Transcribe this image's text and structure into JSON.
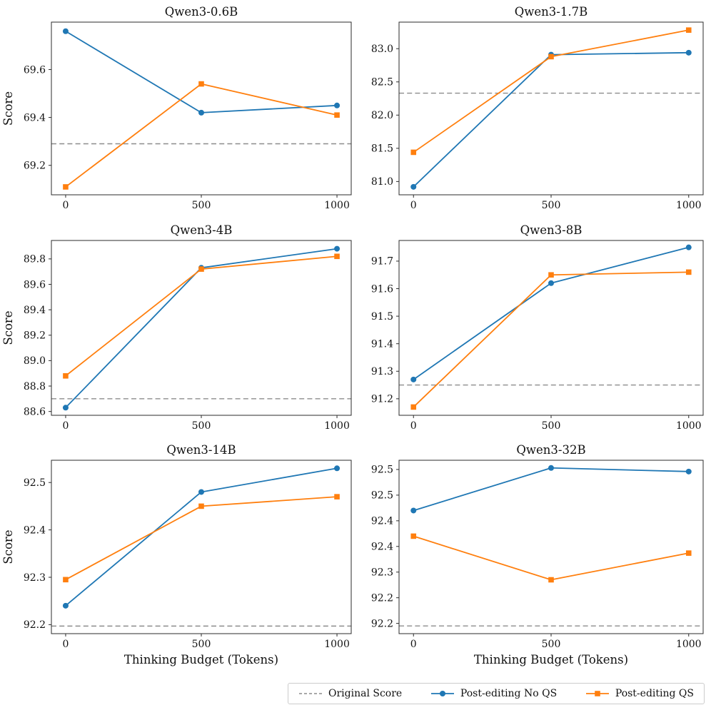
{
  "figure": {
    "xlabel": "Thinking Budget (Tokens)",
    "ylabel": "Score",
    "x_tick_labels": [
      "0",
      "500",
      "1000"
    ],
    "colors": {
      "no_qs": "#1f77b4",
      "qs": "#ff7f0e",
      "original_score": "#8c8c8c",
      "spine": "#2b2b2b"
    },
    "legend": [
      {
        "label": "Original Score",
        "style": "dashed",
        "color": "#8c8c8c"
      },
      {
        "label": "Post-editing No QS",
        "style": "line-circle",
        "color": "#1f77b4"
      },
      {
        "label": "Post-editing QS",
        "style": "line-square",
        "color": "#ff7f0e"
      }
    ]
  },
  "chart_data": [
    {
      "type": "line",
      "title": "Qwen3-0.6B",
      "x": [
        0,
        500,
        1000
      ],
      "xtick_labels": [
        "0",
        "500",
        "1000"
      ],
      "xlim": [
        -52.5,
        1052.5
      ],
      "ylim": [
        69.077,
        69.798
      ],
      "yticks": [
        {
          "v": 69.2,
          "label": "69.2"
        },
        {
          "v": 69.4,
          "label": "69.4"
        },
        {
          "v": 69.6,
          "label": "69.6"
        }
      ],
      "original_score": 69.29,
      "series": [
        {
          "name": "Post-editing No QS",
          "marker": "circle",
          "color": "#1f77b4",
          "values": [
            69.76,
            69.42,
            69.45
          ]
        },
        {
          "name": "Post-editing QS",
          "marker": "square",
          "color": "#ff7f0e",
          "values": [
            69.11,
            69.54,
            69.41
          ]
        }
      ],
      "ylabel": "Score",
      "xlabel": ""
    },
    {
      "type": "line",
      "title": "Qwen3-1.7B",
      "x": [
        0,
        500,
        1000
      ],
      "xtick_labels": [
        "0",
        "500",
        "1000"
      ],
      "xlim": [
        -52.5,
        1052.5
      ],
      "ylim": [
        80.8,
        83.4
      ],
      "yticks": [
        {
          "v": 81.0,
          "label": "81.0"
        },
        {
          "v": 81.5,
          "label": "81.5"
        },
        {
          "v": 82.0,
          "label": "82.0"
        },
        {
          "v": 82.5,
          "label": "82.5"
        },
        {
          "v": 83.0,
          "label": "83.0"
        }
      ],
      "original_score": 82.33,
      "series": [
        {
          "name": "Post-editing No QS",
          "marker": "circle",
          "color": "#1f77b4",
          "values": [
            80.92,
            82.91,
            82.94
          ]
        },
        {
          "name": "Post-editing QS",
          "marker": "square",
          "color": "#ff7f0e",
          "values": [
            81.44,
            82.88,
            83.28
          ]
        }
      ],
      "ylabel": "",
      "xlabel": ""
    },
    {
      "type": "line",
      "title": "Qwen3-4B",
      "x": [
        0,
        500,
        1000
      ],
      "xtick_labels": [
        "0",
        "500",
        "1000"
      ],
      "xlim": [
        -52.5,
        1052.5
      ],
      "ylim": [
        88.57,
        89.945
      ],
      "yticks": [
        {
          "v": 88.6,
          "label": "88.6"
        },
        {
          "v": 88.8,
          "label": "88.8"
        },
        {
          "v": 89.0,
          "label": "89.0"
        },
        {
          "v": 89.2,
          "label": "89.2"
        },
        {
          "v": 89.4,
          "label": "89.4"
        },
        {
          "v": 89.6,
          "label": "89.6"
        },
        {
          "v": 89.8,
          "label": "89.8"
        }
      ],
      "original_score": 88.7,
      "series": [
        {
          "name": "Post-editing No QS",
          "marker": "circle",
          "color": "#1f77b4",
          "values": [
            88.63,
            89.73,
            89.88
          ]
        },
        {
          "name": "Post-editing QS",
          "marker": "square",
          "color": "#ff7f0e",
          "values": [
            88.88,
            89.72,
            89.82
          ]
        }
      ],
      "ylabel": "Score",
      "xlabel": ""
    },
    {
      "type": "line",
      "title": "Qwen3-8B",
      "x": [
        0,
        500,
        1000
      ],
      "xtick_labels": [
        "0",
        "500",
        "1000"
      ],
      "xlim": [
        -52.5,
        1052.5
      ],
      "ylim": [
        91.14,
        91.775
      ],
      "yticks": [
        {
          "v": 91.2,
          "label": "91.2"
        },
        {
          "v": 91.3,
          "label": "91.3"
        },
        {
          "v": 91.4,
          "label": "91.4"
        },
        {
          "v": 91.5,
          "label": "91.5"
        },
        {
          "v": 91.6,
          "label": "91.6"
        },
        {
          "v": 91.7,
          "label": "91.7"
        }
      ],
      "original_score": 91.25,
      "series": [
        {
          "name": "Post-editing No QS",
          "marker": "circle",
          "color": "#1f77b4",
          "values": [
            91.27,
            91.62,
            91.75
          ]
        },
        {
          "name": "Post-editing QS",
          "marker": "square",
          "color": "#ff7f0e",
          "values": [
            91.17,
            91.65,
            91.66
          ]
        }
      ],
      "ylabel": "",
      "xlabel": ""
    },
    {
      "type": "line",
      "title": "Qwen3-14B",
      "x": [
        0,
        500,
        1000
      ],
      "xtick_labels": [
        "0",
        "500",
        "1000"
      ],
      "xlim": [
        -52.5,
        1052.5
      ],
      "ylim": [
        92.181,
        92.547
      ],
      "yticks": [
        {
          "v": 92.2,
          "label": "92.2"
        },
        {
          "v": 92.3,
          "label": "92.3"
        },
        {
          "v": 92.4,
          "label": "92.4"
        },
        {
          "v": 92.5,
          "label": "92.5"
        }
      ],
      "original_score": 92.197,
      "series": [
        {
          "name": "Post-editing No QS",
          "marker": "circle",
          "color": "#1f77b4",
          "values": [
            92.24,
            92.48,
            92.53
          ]
        },
        {
          "name": "Post-editing QS",
          "marker": "square",
          "color": "#ff7f0e",
          "values": [
            92.295,
            92.45,
            92.47
          ]
        }
      ],
      "ylabel": "Score",
      "xlabel": "Thinking Budget (Tokens)"
    },
    {
      "type": "line",
      "title": "Qwen3-32B",
      "x": [
        0,
        500,
        1000
      ],
      "xtick_labels": [
        "0",
        "500",
        "1000"
      ],
      "xlim": [
        -52.5,
        1052.5
      ],
      "ylim": [
        92.18,
        92.518
      ],
      "yticks": [
        {
          "v": 92.2,
          "label": "92.2"
        },
        {
          "v": 92.25,
          "label": "92.2"
        },
        {
          "v": 92.3,
          "label": "92.3"
        },
        {
          "v": 92.35,
          "label": "92.4"
        },
        {
          "v": 92.4,
          "label": "92.4"
        },
        {
          "v": 92.45,
          "label": "92.5"
        },
        {
          "v": 92.5,
          "label": "92.5"
        }
      ],
      "original_score": 92.195,
      "series": [
        {
          "name": "Post-editing No QS",
          "marker": "circle",
          "color": "#1f77b4",
          "values": [
            92.42,
            92.503,
            92.496
          ]
        },
        {
          "name": "Post-editing QS",
          "marker": "square",
          "color": "#ff7f0e",
          "values": [
            92.37,
            92.285,
            92.337
          ]
        }
      ],
      "ylabel": "",
      "xlabel": "Thinking Budget (Tokens)"
    }
  ]
}
